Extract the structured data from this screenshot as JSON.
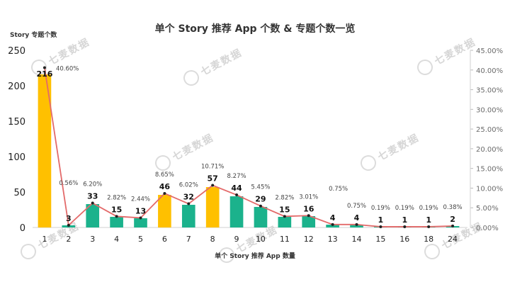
{
  "chart_data": {
    "type": "bar",
    "title": "单个 Story 推荐 App 个数 & 专题个数一览",
    "xlabel": "单个 Story 推荐 App 数量",
    "ylabel": "Story 专题个数",
    "categories": [
      "1",
      "2",
      "3",
      "4",
      "5",
      "6",
      "7",
      "8",
      "9",
      "10",
      "11",
      "12",
      "13",
      "14",
      "15",
      "16",
      "18",
      "24"
    ],
    "series": [
      {
        "type": "bar",
        "values": [
          216,
          3,
          33,
          15,
          13,
          46,
          32,
          57,
          44,
          29,
          15,
          16,
          4,
          4,
          1,
          1,
          1,
          2
        ],
        "highlight": [
          true,
          false,
          false,
          false,
          false,
          true,
          false,
          true,
          false,
          false,
          false,
          false,
          false,
          false,
          false,
          false,
          false,
          false
        ]
      },
      {
        "type": "line",
        "axis": "right",
        "values": [
          40.6,
          0.56,
          6.2,
          2.82,
          2.44,
          8.65,
          6.02,
          10.71,
          8.27,
          5.45,
          2.82,
          3.01,
          0.75,
          0.75,
          0.19,
          0.19,
          0.19,
          0.38
        ],
        "labels": [
          "40.60%",
          "0.56%",
          "6.20%",
          "2.82%",
          "2.44%",
          "8.65%",
          "6.02%",
          "10.71%",
          "8.27%",
          "5.45%",
          "2.82%",
          "3.01%",
          "0.75%",
          "0.75%",
          "0.19%",
          "0.19%",
          "0.19%",
          "0.38%"
        ]
      }
    ],
    "ylim": [
      0,
      250
    ],
    "yticks": [
      "0",
      "50",
      "100",
      "150",
      "200",
      "250"
    ],
    "y2lim": [
      0,
      45
    ],
    "y2ticks": [
      "0.00%",
      "5.00%",
      "10.00%",
      "15.00%",
      "20.00%",
      "25.00%",
      "30.00%",
      "35.00%",
      "40.00%",
      "45.00%"
    ],
    "grid": false,
    "colors": {
      "highlight": "#FFC000",
      "bar": "#1BB28C",
      "line": "#E36A6A",
      "marker": "#222222"
    }
  },
  "watermark": "七麦数据"
}
